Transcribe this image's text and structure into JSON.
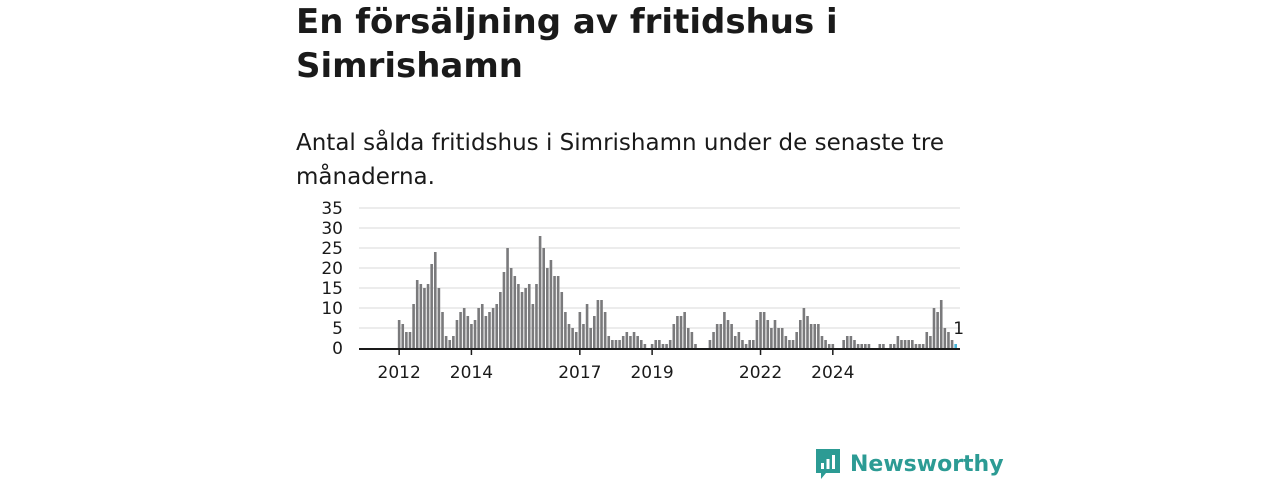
{
  "title": "En försäljning av fritidshus i Simrishamn",
  "subtitle": "Antal sålda fritidshus i Simrishamn under de senaste tre månaderna.",
  "brand": {
    "name": "Newsworthy",
    "color": "#2c9b94",
    "icon": "newsworthy-logo-icon"
  },
  "chart_data": {
    "type": "bar",
    "ylim": [
      0,
      35
    ],
    "yticks": [
      0,
      5,
      10,
      15,
      20,
      25,
      30,
      35
    ],
    "grid": true,
    "bar_color": "#7a7a7c",
    "highlight_color": "#45b3d6",
    "highlight_label": "1",
    "xticks": [
      "2012",
      "2014",
      "2017",
      "2019",
      "2022",
      "2024"
    ],
    "xtick_index": [
      3,
      23,
      53,
      73,
      103,
      123
    ],
    "values": [
      0,
      0,
      0,
      7,
      6,
      4,
      4,
      11,
      17,
      16,
      15,
      16,
      21,
      24,
      15,
      9,
      3,
      2,
      3,
      7,
      9,
      10,
      8,
      6,
      7,
      10,
      11,
      8,
      9,
      10,
      11,
      14,
      19,
      25,
      20,
      18,
      16,
      14,
      15,
      16,
      11,
      16,
      28,
      25,
      20,
      22,
      18,
      18,
      14,
      9,
      6,
      5,
      4,
      9,
      6,
      11,
      5,
      8,
      12,
      12,
      9,
      3,
      2,
      2,
      2,
      3,
      4,
      3,
      4,
      3,
      2,
      1,
      0,
      1,
      2,
      2,
      1,
      1,
      2,
      6,
      8,
      8,
      9,
      5,
      4,
      1,
      0,
      0,
      0,
      2,
      4,
      6,
      6,
      9,
      7,
      6,
      3,
      4,
      2,
      1,
      2,
      2,
      7,
      9,
      9,
      7,
      5,
      7,
      5,
      5,
      3,
      2,
      2,
      4,
      7,
      10,
      8,
      6,
      6,
      6,
      3,
      2,
      1,
      1,
      0,
      0,
      2,
      3,
      3,
      2,
      1,
      1,
      1,
      1,
      0,
      0,
      1,
      1,
      0,
      1,
      1,
      3,
      2,
      2,
      2,
      2,
      1,
      1,
      1,
      4,
      3,
      10,
      9,
      12,
      5,
      4,
      2,
      1
    ]
  }
}
